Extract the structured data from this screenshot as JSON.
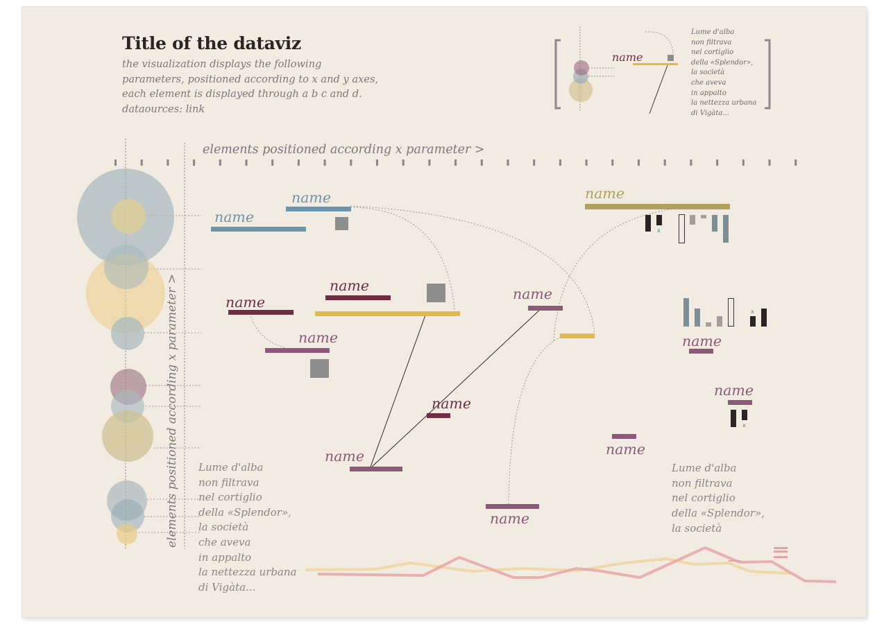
{
  "header": {
    "title": "Title of the dataviz",
    "subtitle_lines": [
      "the visualization displays the following",
      "parameters, positioned according to x and y axes,",
      "each element is displayed through a b c and d.",
      "dataources: link"
    ]
  },
  "legend": {
    "name_label": "name",
    "poem_lines": [
      "Lume d'alba",
      "non filtrava",
      "nel cortiglio",
      "della «Splendor»,",
      "la società",
      "che aveva",
      "in appalto",
      "la nettezza urbana",
      "di Vigàta..."
    ]
  },
  "axes": {
    "x_label": "elements positioned according x parameter >",
    "y_label": "elements positioned according x parameter >"
  },
  "elements": [
    {
      "label": "name",
      "color": "#6f95aa"
    },
    {
      "label": "name",
      "color": "#6f95aa"
    },
    {
      "label": "name",
      "color": "#b2a05e"
    },
    {
      "label": "name",
      "color": "#6e2f45"
    },
    {
      "label": "name",
      "color": "#6e2f45"
    },
    {
      "label": "name",
      "color": "#8b5a78"
    },
    {
      "label": "name",
      "color": "#8b5a78"
    },
    {
      "label": "name",
      "color": "#8b5a78"
    },
    {
      "label": "name",
      "color": "#6e2f45"
    },
    {
      "label": "name",
      "color": "#8b5a78"
    },
    {
      "label": "name",
      "color": "#8b5a78"
    },
    {
      "label": "name",
      "color": "#8b5a78"
    },
    {
      "label": "name",
      "color": "#8b5a78"
    }
  ],
  "poem_left": [
    "Lume d'alba",
    "non filtrava",
    "nel cortiglio",
    "della «Splendor»,",
    "la società",
    "che aveva",
    "in appalto",
    "la nettezza urbana",
    "di Vigàta..."
  ],
  "poem_right": [
    "Lume d'alba",
    "non filtrava",
    "nel cortiglio",
    "della «Splendor»,",
    "la società"
  ],
  "colors": {
    "background": "#f2ebe2",
    "steel_blue": "#6f95aa",
    "mustard": "#e2b94b",
    "olive": "#b2a05e",
    "wine": "#6e2f45",
    "mauve": "#8b5a78",
    "gray_block": "#8f8e8f",
    "text_gray": "#7a7878"
  }
}
